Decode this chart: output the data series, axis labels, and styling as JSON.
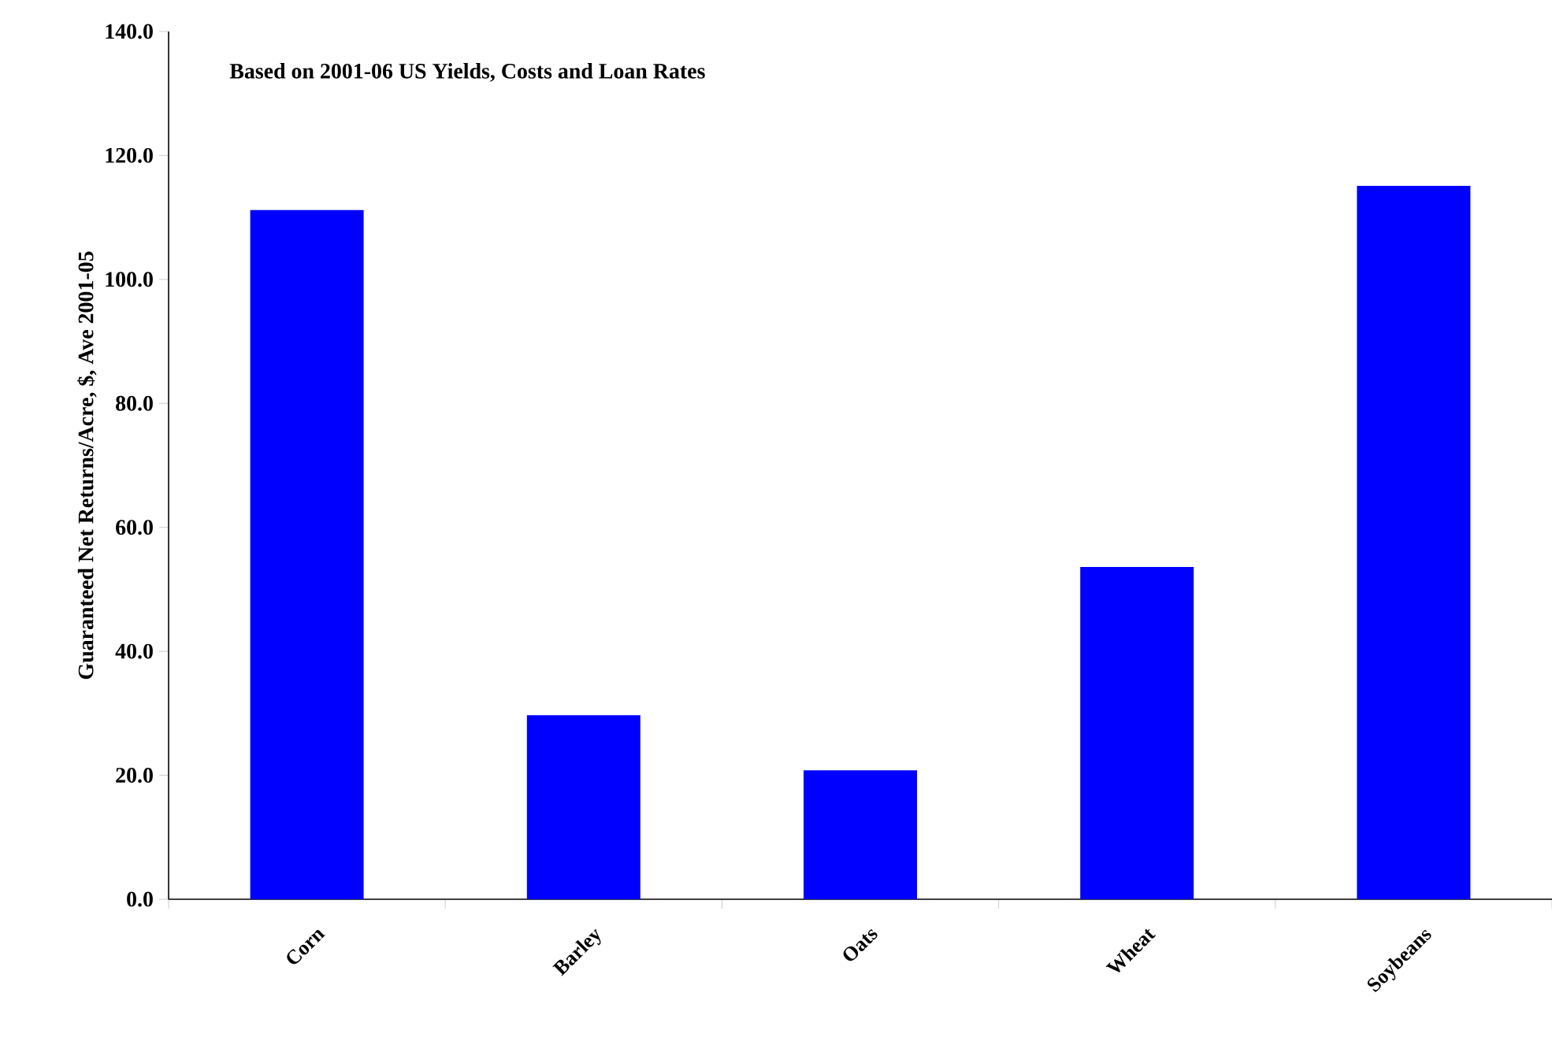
{
  "chart_data": {
    "type": "bar",
    "categories": [
      "Corn",
      "Barley",
      "Oats",
      "Wheat",
      "Soybeans"
    ],
    "values": [
      111.2,
      29.7,
      20.8,
      53.6,
      115.1
    ],
    "color": "#0000ff",
    "ylabel": "Guaranteed Net Returns/Acre, $, Ave 2001-05",
    "annotations": [
      "Based on 2001-06 US Yields, Costs and Loan Rates"
    ],
    "ylim": [
      0,
      140
    ],
    "yticks": [
      {
        "value": 0,
        "label": "0.0"
      },
      {
        "value": 20,
        "label": "20.0"
      },
      {
        "value": 40,
        "label": "40.0"
      },
      {
        "value": 60,
        "label": "60.0"
      },
      {
        "value": 80,
        "label": "80.0"
      },
      {
        "value": 100,
        "label": "100.0"
      },
      {
        "value": 120,
        "label": "120.0"
      },
      {
        "value": 140,
        "label": "140.0"
      }
    ]
  }
}
